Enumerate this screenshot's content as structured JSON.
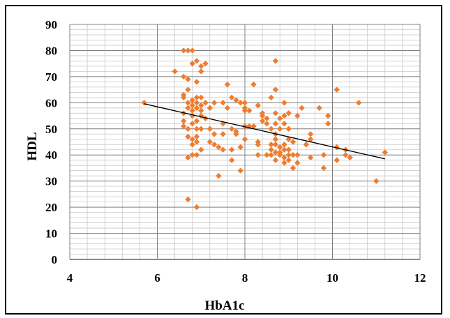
{
  "chart_data": {
    "type": "scatter",
    "title": "",
    "xlabel": "HbA1c",
    "ylabel": "HDL",
    "xlim": [
      4,
      12
    ],
    "ylim": [
      0,
      90
    ],
    "x_ticks": [
      4,
      6,
      8,
      10,
      12
    ],
    "y_ticks": [
      0,
      10,
      20,
      30,
      40,
      50,
      60,
      70,
      80,
      90
    ],
    "grid": "major and minor",
    "legend": "none",
    "marker_color": "#ED7D31",
    "trendline_color": "#000000",
    "trendline": {
      "x": [
        5.7,
        11.2
      ],
      "y": [
        59.6,
        38.5
      ]
    },
    "series": [
      {
        "points": [
          [
            5.7,
            60
          ],
          [
            6.4,
            72
          ],
          [
            6.6,
            80
          ],
          [
            6.7,
            80
          ],
          [
            6.8,
            80
          ],
          [
            6.6,
            70
          ],
          [
            6.7,
            69
          ],
          [
            6.6,
            63
          ],
          [
            6.6,
            62
          ],
          [
            6.7,
            65
          ],
          [
            6.7,
            60
          ],
          [
            6.6,
            56
          ],
          [
            6.6,
            53
          ],
          [
            6.7,
            58
          ],
          [
            6.8,
            57
          ],
          [
            6.6,
            51
          ],
          [
            6.7,
            50
          ],
          [
            6.7,
            47
          ],
          [
            6.7,
            39
          ],
          [
            6.8,
            40
          ],
          [
            6.8,
            44
          ],
          [
            6.8,
            46
          ],
          [
            6.8,
            52
          ],
          [
            6.8,
            55
          ],
          [
            6.8,
            59
          ],
          [
            6.8,
            61
          ],
          [
            6.8,
            75
          ],
          [
            6.9,
            76
          ],
          [
            6.9,
            68
          ],
          [
            6.9,
            62
          ],
          [
            6.9,
            60
          ],
          [
            6.9,
            58
          ],
          [
            6.9,
            53
          ],
          [
            6.9,
            50
          ],
          [
            6.9,
            47
          ],
          [
            6.9,
            45
          ],
          [
            6.9,
            40
          ],
          [
            7.0,
            74
          ],
          [
            7.0,
            72
          ],
          [
            7.0,
            62
          ],
          [
            7.0,
            59
          ],
          [
            7.0,
            57
          ],
          [
            7.0,
            55
          ],
          [
            7.0,
            50
          ],
          [
            7.0,
            42
          ],
          [
            7.1,
            75
          ],
          [
            7.1,
            60
          ],
          [
            7.1,
            54
          ],
          [
            6.7,
            23
          ],
          [
            6.9,
            20
          ],
          [
            7.2,
            58
          ],
          [
            7.2,
            50
          ],
          [
            7.2,
            45
          ],
          [
            7.3,
            60
          ],
          [
            7.3,
            48
          ],
          [
            7.3,
            44
          ],
          [
            7.4,
            43
          ],
          [
            7.4,
            32
          ],
          [
            7.5,
            60
          ],
          [
            7.5,
            52
          ],
          [
            7.5,
            42
          ],
          [
            7.5,
            48
          ],
          [
            7.6,
            67
          ],
          [
            7.6,
            58
          ],
          [
            7.7,
            62
          ],
          [
            7.7,
            50
          ],
          [
            7.7,
            42
          ],
          [
            7.7,
            38
          ],
          [
            7.8,
            61
          ],
          [
            7.8,
            49
          ],
          [
            7.8,
            48
          ],
          [
            7.9,
            60
          ],
          [
            7.9,
            43
          ],
          [
            7.9,
            34
          ],
          [
            8.0,
            60
          ],
          [
            8.0,
            58
          ],
          [
            8.0,
            57
          ],
          [
            8.0,
            51
          ],
          [
            8.0,
            46
          ],
          [
            8.1,
            57
          ],
          [
            8.1,
            51
          ],
          [
            8.2,
            67
          ],
          [
            8.2,
            51
          ],
          [
            8.3,
            59
          ],
          [
            8.3,
            45
          ],
          [
            8.3,
            44
          ],
          [
            8.3,
            40
          ],
          [
            8.4,
            56
          ],
          [
            8.4,
            55
          ],
          [
            8.4,
            53
          ],
          [
            8.5,
            54
          ],
          [
            8.5,
            52
          ],
          [
            8.5,
            40
          ],
          [
            8.6,
            62
          ],
          [
            8.6,
            50
          ],
          [
            8.6,
            44
          ],
          [
            8.6,
            42
          ],
          [
            8.6,
            40
          ],
          [
            8.7,
            76
          ],
          [
            8.7,
            65
          ],
          [
            8.7,
            56
          ],
          [
            8.7,
            52
          ],
          [
            8.7,
            48
          ],
          [
            8.7,
            46
          ],
          [
            8.7,
            44
          ],
          [
            8.7,
            41
          ],
          [
            8.7,
            38
          ],
          [
            8.8,
            54
          ],
          [
            8.8,
            50
          ],
          [
            8.8,
            43
          ],
          [
            8.8,
            41
          ],
          [
            8.8,
            40
          ],
          [
            8.9,
            60
          ],
          [
            8.9,
            55
          ],
          [
            8.9,
            52
          ],
          [
            8.9,
            44
          ],
          [
            8.9,
            42
          ],
          [
            8.9,
            39
          ],
          [
            8.9,
            37
          ],
          [
            9.0,
            56
          ],
          [
            9.0,
            50
          ],
          [
            9.0,
            46
          ],
          [
            9.0,
            42
          ],
          [
            9.0,
            40
          ],
          [
            9.0,
            38
          ],
          [
            9.1,
            45
          ],
          [
            9.1,
            40
          ],
          [
            9.1,
            35
          ],
          [
            9.2,
            55
          ],
          [
            9.2,
            40
          ],
          [
            9.2,
            37
          ],
          [
            9.3,
            58
          ],
          [
            9.4,
            44
          ],
          [
            9.5,
            48
          ],
          [
            9.5,
            46
          ],
          [
            9.5,
            39
          ],
          [
            9.7,
            58
          ],
          [
            9.8,
            40
          ],
          [
            9.8,
            35
          ],
          [
            9.9,
            55
          ],
          [
            9.9,
            52
          ],
          [
            10.1,
            65
          ],
          [
            10.1,
            43
          ],
          [
            10.1,
            38
          ],
          [
            10.3,
            42
          ],
          [
            10.3,
            40
          ],
          [
            10.4,
            39
          ],
          [
            10.6,
            60
          ],
          [
            11.0,
            30
          ],
          [
            11.2,
            41
          ]
        ]
      }
    ]
  }
}
